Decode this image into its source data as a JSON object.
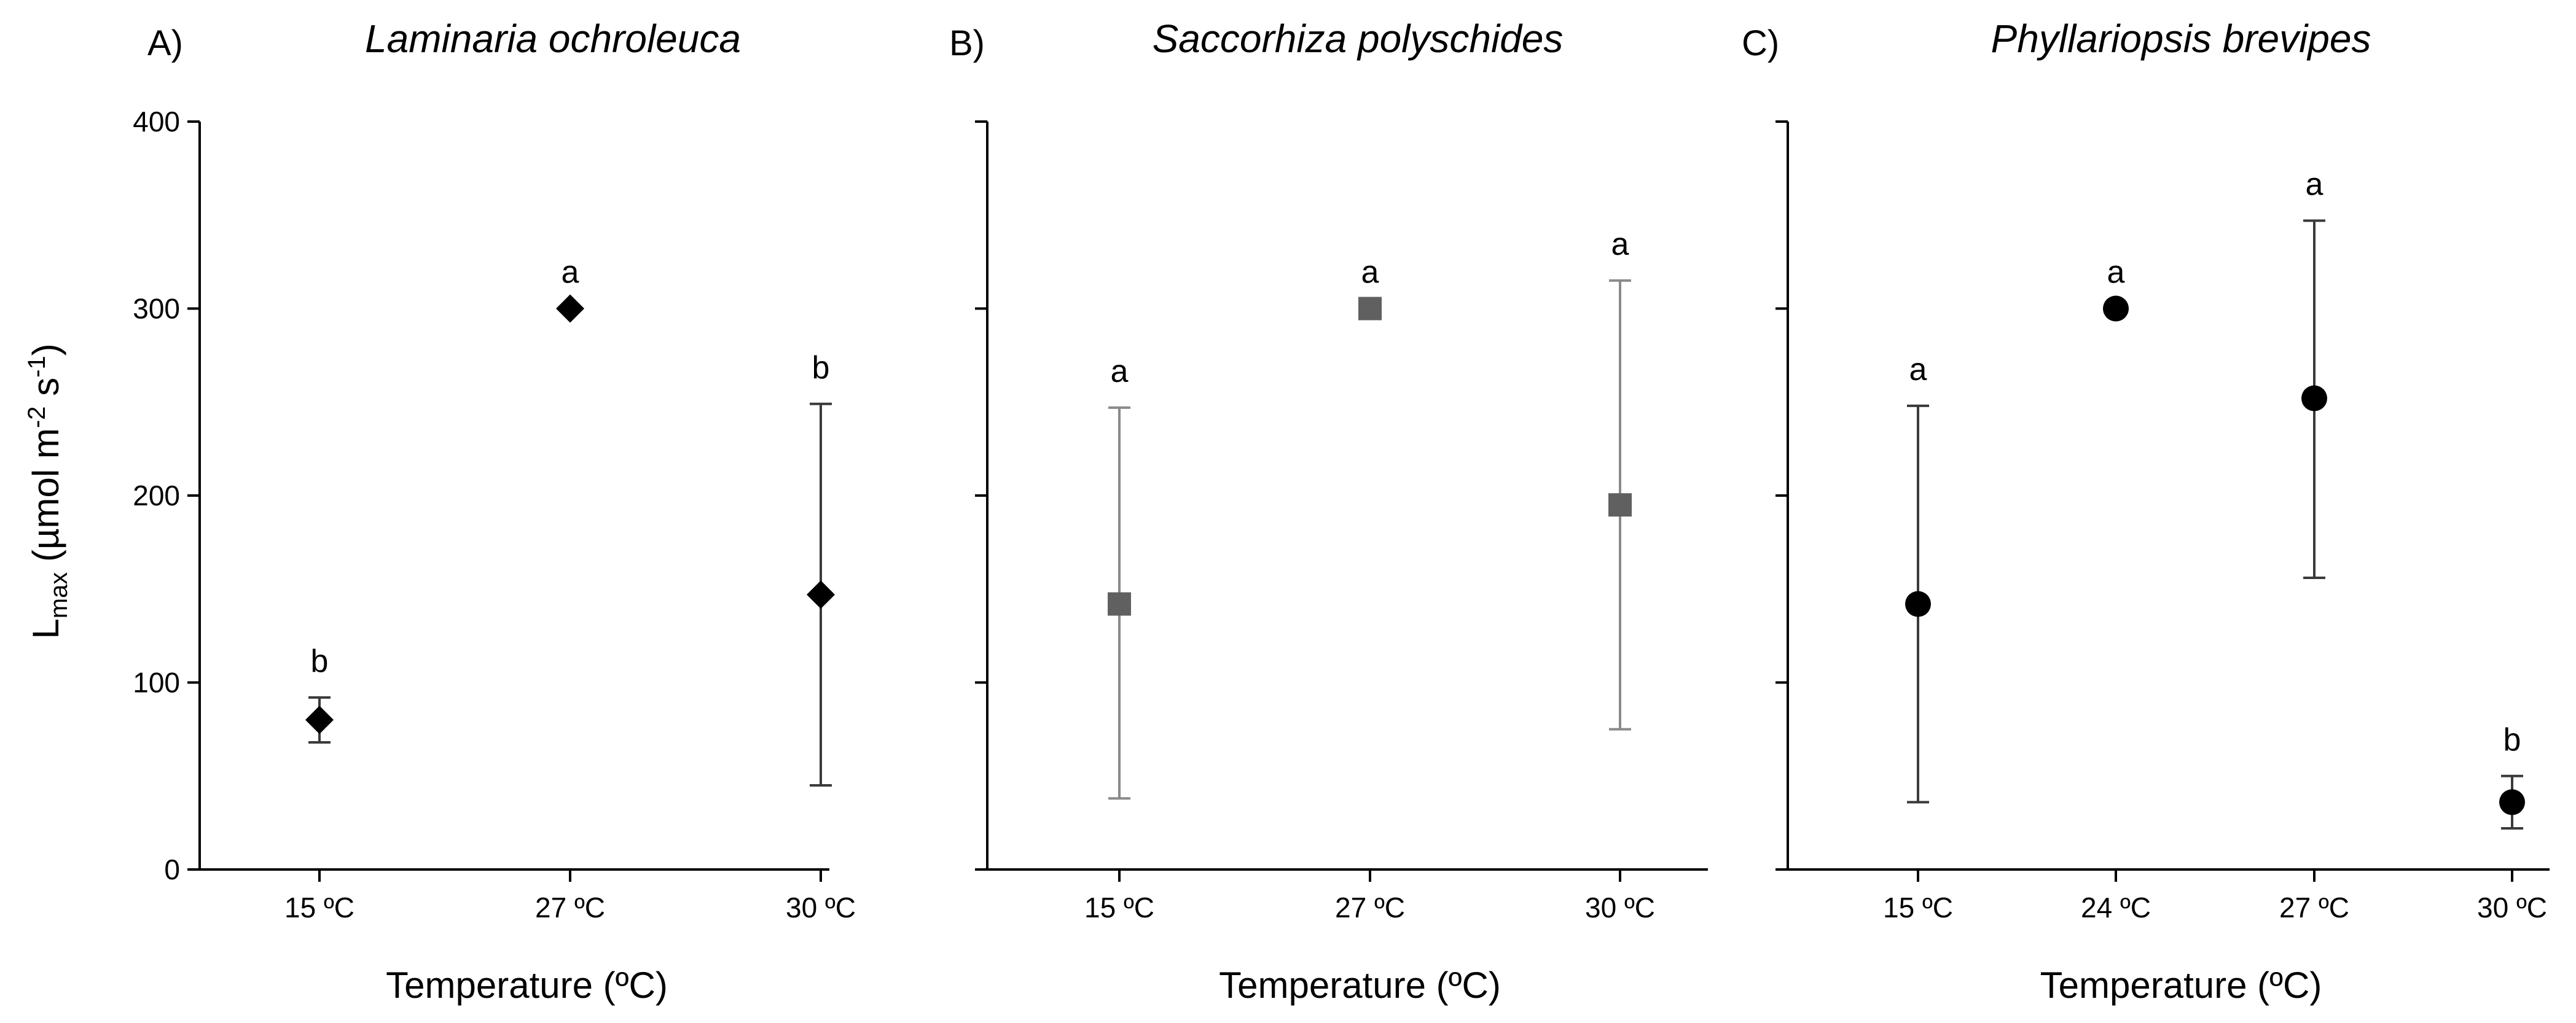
{
  "figure": {
    "ylabel_main": "L",
    "ylabel_sub": "max",
    "ylabel_rest1": " (µmol m",
    "ylabel_sup1": "-2",
    "ylabel_rest2": " s",
    "ylabel_sup2": "-1",
    "ylabel_close": ")"
  },
  "chart_data": [
    {
      "type": "scatter",
      "panel": "A)",
      "title": "Laminaria ochroleuca",
      "xlabel": "Temperature (ºC)",
      "ylabel": "Lmax (µmol m-2 s-1)",
      "ylim": [
        0,
        400
      ],
      "yticks": [
        0,
        100,
        200,
        300,
        400
      ],
      "categories": [
        "15 ºC",
        "27 ºC",
        "30 ºC"
      ],
      "values": [
        80,
        300,
        147
      ],
      "err_low": [
        68,
        300,
        45
      ],
      "err_high": [
        92,
        300,
        249
      ],
      "letters": [
        "b",
        "a",
        "b"
      ],
      "marker": "diamond",
      "color": "#000000",
      "errcolor": "#3a3a3a"
    },
    {
      "type": "scatter",
      "panel": "B)",
      "title": "Saccorhiza polyschides",
      "xlabel": "Temperature  (ºC)",
      "ylabel": "",
      "ylim": [
        0,
        400
      ],
      "yticks": [
        0,
        100,
        200,
        300,
        400
      ],
      "categories": [
        "15 ºC",
        "27 ºC",
        "30 ºC"
      ],
      "values": [
        142,
        300,
        195
      ],
      "err_low": [
        38,
        300,
        75
      ],
      "err_high": [
        247,
        300,
        315
      ],
      "letters": [
        "a",
        "a",
        "a"
      ],
      "marker": "square",
      "color": "#606060",
      "errcolor": "#8a8a8a"
    },
    {
      "type": "scatter",
      "panel": "C)",
      "title": "Phyllariopsis brevipes",
      "xlabel": "Temperature  (ºC)",
      "ylabel": "",
      "ylim": [
        0,
        400
      ],
      "yticks": [
        0,
        100,
        200,
        300,
        400
      ],
      "categories": [
        "15 ºC",
        "24 ºC",
        "27 ºC",
        "30 ºC"
      ],
      "values": [
        142,
        300,
        252,
        36
      ],
      "err_low": [
        36,
        300,
        156,
        22
      ],
      "err_high": [
        248,
        300,
        347,
        50
      ],
      "letters": [
        "a",
        "a",
        "a",
        "b"
      ],
      "marker": "circle",
      "color": "#000000",
      "errcolor": "#3a3a3a"
    }
  ]
}
